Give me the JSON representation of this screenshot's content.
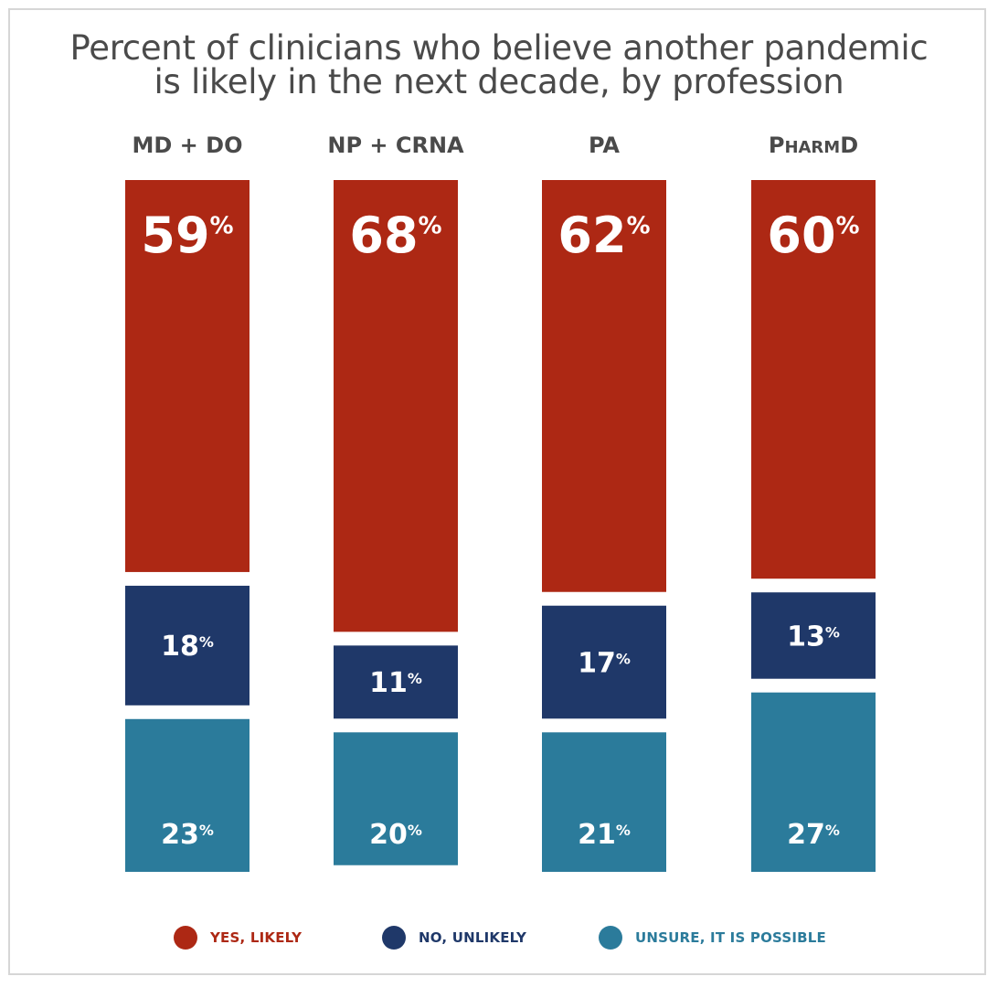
{
  "chart_data": {
    "type": "bar",
    "stacked": true,
    "title": "Percent of clinicians who believe another pandemic is likely in the next decade, by profession",
    "title_lines": [
      "Percent of clinicians who believe another pandemic",
      "is likely in the next decade, by profession"
    ],
    "categories": [
      "MD + DO",
      "NP + CRNA",
      "PA",
      "PharmD"
    ],
    "series": [
      {
        "name": "YES, LIKELY",
        "values": [
          59,
          68,
          62,
          60
        ],
        "color": "#ad2814"
      },
      {
        "name": "NO, UNLIKELY",
        "values": [
          18,
          11,
          17,
          13
        ],
        "color": "#1f3869"
      },
      {
        "name": "UNSURE, IT IS POSSIBLE",
        "values": [
          23,
          20,
          21,
          27
        ],
        "color": "#2b7b9b"
      }
    ],
    "value_suffix": "%",
    "ylim": [
      0,
      100
    ],
    "legend_position": "bottom",
    "grid": false
  }
}
